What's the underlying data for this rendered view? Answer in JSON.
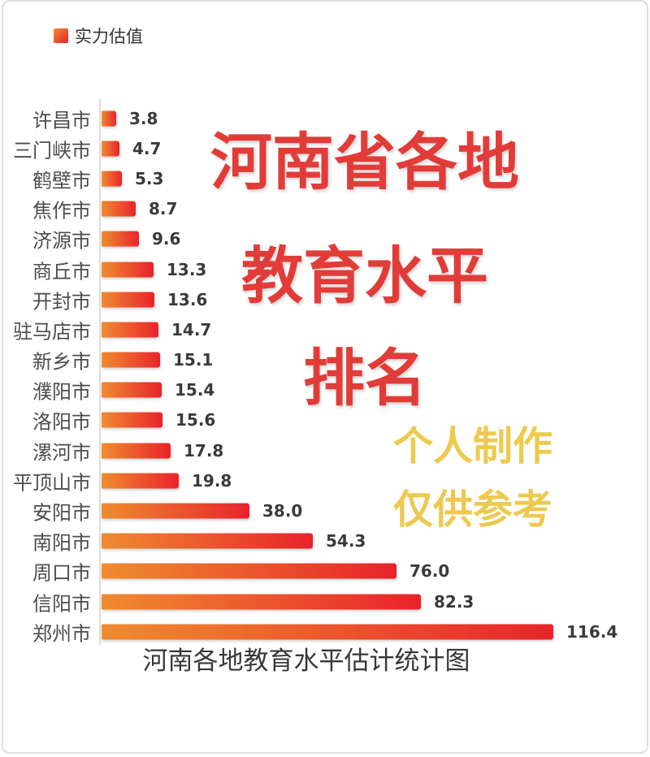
{
  "legend": {
    "label": "实力估值"
  },
  "overlay": {
    "red_lines": [
      "河南省各地",
      "教育水平",
      "排名"
    ],
    "yellow_lines": [
      "个人制作",
      "仅供参考"
    ],
    "red_color": "#e23c38",
    "yellow_color": "#edc94e"
  },
  "chart_title": "河南各地教育水平估计统计图",
  "chart_data": {
    "type": "bar",
    "orientation": "horizontal",
    "series_name": "实力估值",
    "categories": [
      "许昌市",
      "三门峡市",
      "鹤壁市",
      "焦作市",
      "济源市",
      "商丘市",
      "开封市",
      "驻马店市",
      "新乡市",
      "濮阳市",
      "洛阳市",
      "漯河市",
      "平顶山市",
      "安阳市",
      "南阳市",
      "周口市",
      "信阳市",
      "郑州市"
    ],
    "values": [
      3.8,
      4.7,
      5.3,
      8.7,
      9.6,
      13.3,
      13.6,
      14.7,
      15.1,
      15.4,
      15.6,
      17.8,
      19.8,
      38.0,
      54.3,
      76.0,
      82.3,
      116.4
    ],
    "title": "河南各地教育水平估计统计图",
    "xlim": [
      0,
      120
    ],
    "grid": false,
    "legend_position": "top-left",
    "value_labels": true,
    "value_format": "one-decimal",
    "bar_color_start": "#ef8c30",
    "bar_color_end": "#e8232b"
  }
}
